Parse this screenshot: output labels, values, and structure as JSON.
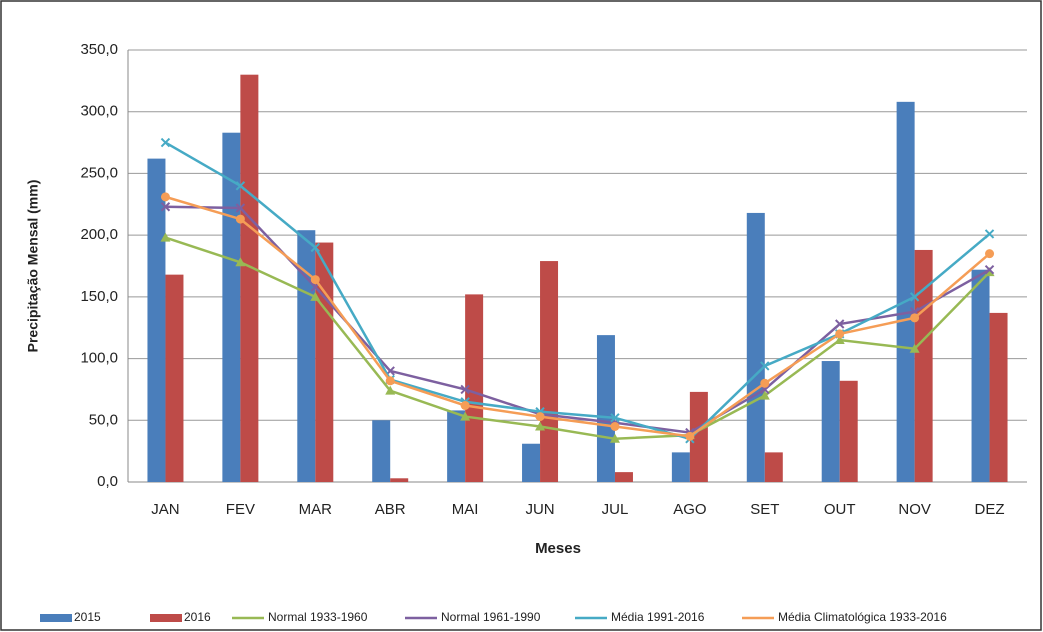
{
  "chart_data": {
    "type": "bar",
    "x_label": "Meses",
    "y_label": "Precipitação Mensal (mm)",
    "categories": [
      "JAN",
      "FEV",
      "MAR",
      "ABR",
      "MAI",
      "JUN",
      "JUL",
      "AGO",
      "SET",
      "OUT",
      "NOV",
      "DEZ"
    ],
    "series": [
      {
        "name": "2015",
        "type": "bar",
        "color": "#4a7ebb",
        "values": [
          262,
          283,
          204,
          50,
          58,
          31,
          119,
          24,
          218,
          98,
          308,
          172
        ]
      },
      {
        "name": "2016",
        "type": "bar",
        "color": "#be4b48",
        "values": [
          168,
          330,
          194,
          3,
          152,
          179,
          8,
          73,
          24,
          82,
          188,
          137
        ]
      },
      {
        "name": "Normal 1933-1960",
        "type": "line",
        "marker": "triangle",
        "color": "#98b954",
        "values": [
          198,
          178,
          150,
          74,
          53,
          45,
          35,
          38,
          70,
          115,
          108,
          170
        ]
      },
      {
        "name": "Normal 1961-1990",
        "type": "line",
        "marker": "x",
        "color": "#7d60a0",
        "values": [
          223,
          222,
          158,
          90,
          75,
          55,
          48,
          40,
          75,
          128,
          138,
          172
        ]
      },
      {
        "name": "Média 1991-2016",
        "type": "line",
        "marker": "x",
        "color": "#46aac5",
        "values": [
          275,
          240,
          190,
          83,
          65,
          57,
          52,
          35,
          94,
          120,
          150,
          201
        ]
      },
      {
        "name": "Média Climatológica 1933-2016",
        "type": "line",
        "marker": "circle",
        "color": "#f59d56",
        "values": [
          231,
          213,
          164,
          82,
          62,
          53,
          45,
          37,
          80,
          120,
          133,
          185
        ]
      }
    ],
    "ylim": [
      0,
      350
    ],
    "yticks": [
      {
        "value": 0,
        "label": "0,0"
      },
      {
        "value": 50,
        "label": "50,0"
      },
      {
        "value": 100,
        "label": "100,0"
      },
      {
        "value": 150,
        "label": "150,0"
      },
      {
        "value": 200,
        "label": "200,0"
      },
      {
        "value": 250,
        "label": "250,0"
      },
      {
        "value": 300,
        "label": "300,0"
      },
      {
        "value": 350,
        "label": "350,0"
      }
    ],
    "grid": true
  }
}
